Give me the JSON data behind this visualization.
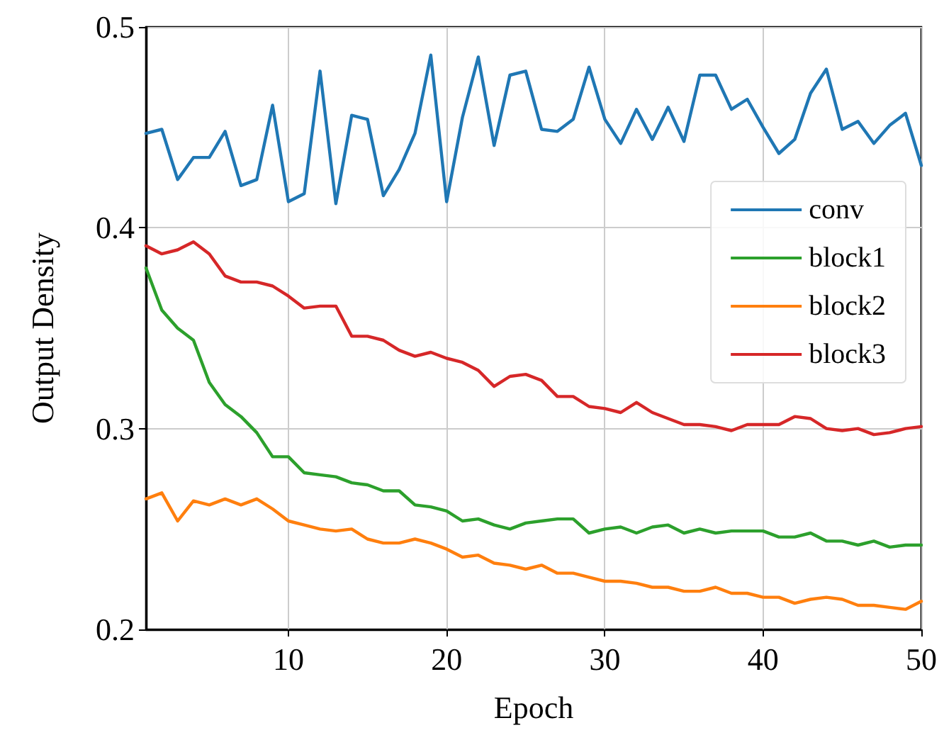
{
  "chart_data": {
    "type": "line",
    "xlabel": "Epoch",
    "ylabel": "Output Density",
    "x": [
      1,
      2,
      3,
      4,
      5,
      6,
      7,
      8,
      9,
      10,
      11,
      12,
      13,
      14,
      15,
      16,
      17,
      18,
      19,
      20,
      21,
      22,
      23,
      24,
      25,
      26,
      27,
      28,
      29,
      30,
      31,
      32,
      33,
      34,
      35,
      36,
      37,
      38,
      39,
      40,
      41,
      42,
      43,
      44,
      45,
      46,
      47,
      48,
      49,
      50
    ],
    "series": [
      {
        "name": "conv",
        "color": "#1f77b4",
        "values": [
          0.447,
          0.449,
          0.424,
          0.435,
          0.435,
          0.448,
          0.421,
          0.424,
          0.461,
          0.413,
          0.417,
          0.478,
          0.412,
          0.456,
          0.454,
          0.416,
          0.429,
          0.447,
          0.486,
          0.413,
          0.455,
          0.485,
          0.441,
          0.476,
          0.478,
          0.449,
          0.448,
          0.454,
          0.48,
          0.454,
          0.442,
          0.459,
          0.444,
          0.46,
          0.443,
          0.476,
          0.476,
          0.459,
          0.464,
          0.45,
          0.437,
          0.444,
          0.467,
          0.479,
          0.449,
          0.453,
          0.442,
          0.451,
          0.457,
          0.431
        ]
      },
      {
        "name": "block1",
        "color": "#2ca02c",
        "values": [
          0.38,
          0.359,
          0.35,
          0.344,
          0.323,
          0.312,
          0.306,
          0.298,
          0.286,
          0.286,
          0.278,
          0.277,
          0.276,
          0.273,
          0.272,
          0.269,
          0.269,
          0.262,
          0.261,
          0.259,
          0.254,
          0.255,
          0.252,
          0.25,
          0.253,
          0.254,
          0.255,
          0.255,
          0.248,
          0.25,
          0.251,
          0.248,
          0.251,
          0.252,
          0.248,
          0.25,
          0.248,
          0.249,
          0.249,
          0.249,
          0.246,
          0.246,
          0.248,
          0.244,
          0.244,
          0.242,
          0.244,
          0.241,
          0.242,
          0.242
        ]
      },
      {
        "name": "block2",
        "color": "#ff7f0e",
        "values": [
          0.265,
          0.268,
          0.254,
          0.264,
          0.262,
          0.265,
          0.262,
          0.265,
          0.26,
          0.254,
          0.252,
          0.25,
          0.249,
          0.25,
          0.245,
          0.243,
          0.243,
          0.245,
          0.243,
          0.24,
          0.236,
          0.237,
          0.233,
          0.232,
          0.23,
          0.232,
          0.228,
          0.228,
          0.226,
          0.224,
          0.224,
          0.223,
          0.221,
          0.221,
          0.219,
          0.219,
          0.221,
          0.218,
          0.218,
          0.216,
          0.216,
          0.213,
          0.215,
          0.216,
          0.215,
          0.212,
          0.212,
          0.211,
          0.21,
          0.214
        ]
      },
      {
        "name": "block3",
        "color": "#d62728",
        "values": [
          0.391,
          0.387,
          0.389,
          0.393,
          0.387,
          0.376,
          0.373,
          0.373,
          0.371,
          0.366,
          0.36,
          0.361,
          0.361,
          0.346,
          0.346,
          0.344,
          0.339,
          0.336,
          0.338,
          0.335,
          0.333,
          0.329,
          0.321,
          0.326,
          0.327,
          0.324,
          0.316,
          0.316,
          0.311,
          0.31,
          0.308,
          0.313,
          0.308,
          0.305,
          0.302,
          0.302,
          0.301,
          0.299,
          0.302,
          0.302,
          0.302,
          0.306,
          0.305,
          0.3,
          0.299,
          0.3,
          0.297,
          0.298,
          0.3,
          0.301
        ]
      }
    ],
    "xlim": [
      1,
      50
    ],
    "xticks": [
      10,
      20,
      30,
      40,
      50
    ],
    "ylim": [
      0.2,
      0.5
    ],
    "yticks": [
      0.2,
      0.3,
      0.4,
      0.5
    ],
    "grid": true,
    "legend": "right",
    "marker": "none",
    "line_style": "solid"
  }
}
